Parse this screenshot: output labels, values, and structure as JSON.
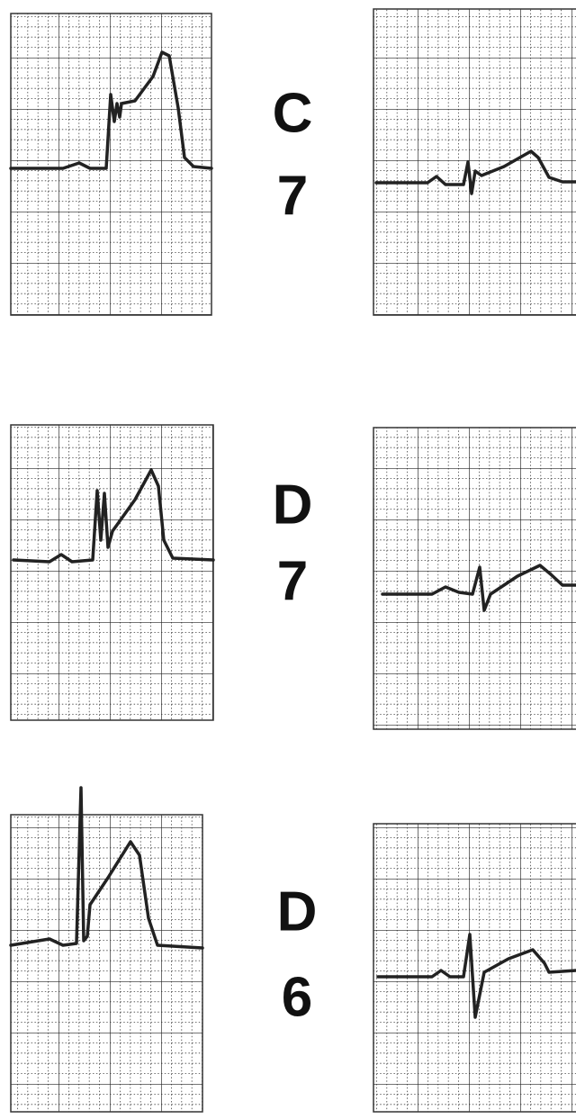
{
  "rows": [
    {
      "letter": "C",
      "number": "7"
    },
    {
      "letter": "D",
      "number": "7"
    },
    {
      "letter": "D",
      "number": "6"
    }
  ]
}
